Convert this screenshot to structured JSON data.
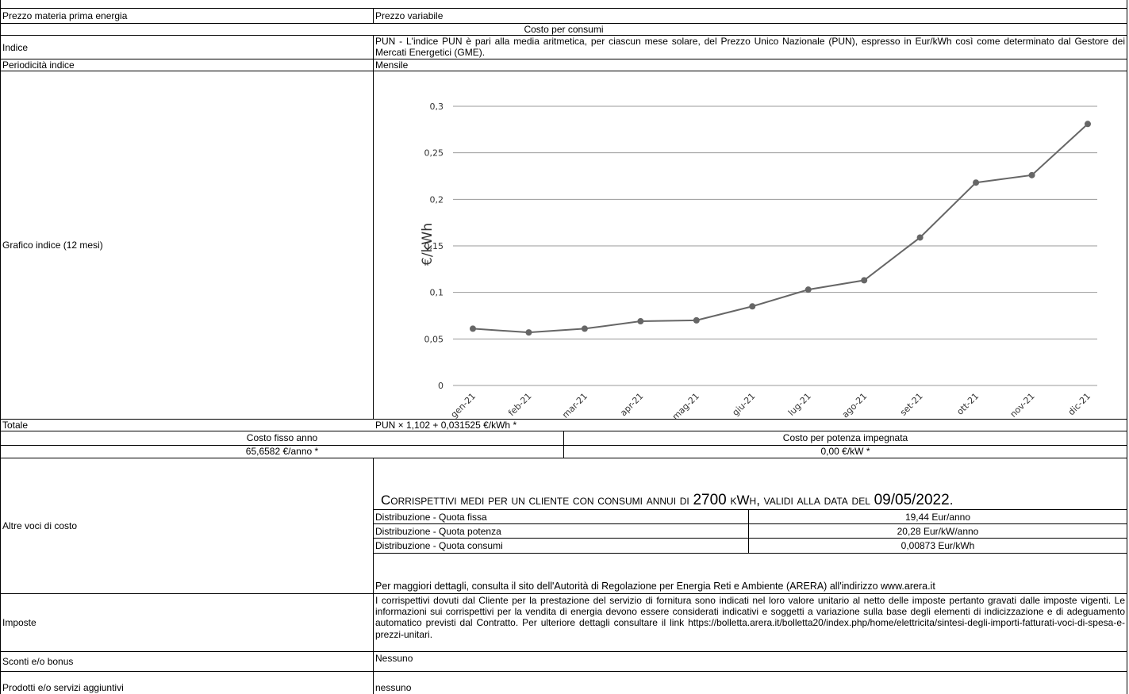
{
  "rows": {
    "prezzo": {
      "label": "Prezzo materia prima energia",
      "value": "Prezzo variabile"
    },
    "costo_consumi_header": "Costo per consumi",
    "indice": {
      "label": "Indice",
      "value": "PUN - L'indice PUN è pari alla media aritmetica, per ciascun mese solare, del Prezzo Unico Nazionale (PUN), espresso in Eur/kWh così come determinato dal Gestore dei Mercati Energetici (GME)."
    },
    "periodicita": {
      "label": "Periodicità indice",
      "value": "Mensile"
    },
    "grafico": {
      "label": "Grafico indice (12 mesi)"
    },
    "totale": {
      "label": "Totale",
      "value": "PUN × 1,102 + 0,031525 €/kWh *"
    },
    "costo_fisso": {
      "label": "Costo fisso anno",
      "value": "65,6582 €/anno *"
    },
    "costo_potenza": {
      "label": "Costo per potenza impegnata",
      "value": "0,00 €/kW *"
    },
    "altre_voci": {
      "label": "Altre voci di costo",
      "heading_pre": "Corrispettivi medi per un cliente con consumi annui di ",
      "heading_kwh": "2700",
      "heading_mid": " kWh, validi alla data del ",
      "heading_date": "09/05/2022",
      "heading_end": ".",
      "items": [
        {
          "name": "Distribuzione - Quota fissa",
          "value": "19,44 Eur/anno"
        },
        {
          "name": "Distribuzione - Quota potenza",
          "value": "20,28 Eur/kW/anno"
        },
        {
          "name": "Distribuzione - Quota consumi",
          "value": "0,00873 Eur/kWh"
        }
      ],
      "note": "Per maggiori dettagli, consulta il sito dell'Autorità di Regolazione per Energia Reti e Ambiente (ARERA) all'indirizzo www.arera.it"
    },
    "imposte": {
      "label": "Imposte",
      "value": "I corrispettivi dovuti dal Cliente per la prestazione del servizio di fornitura sono indicati nel loro valore unitario al netto delle imposte pertanto gravati dalle imposte vigenti. Le informazioni sui corrispettivi per la vendita di energia devono essere considerati indicativi e soggetti a variazione sulla base degli elementi di indicizzazione e di adeguamento automatico previsti dal Contratto. Per ulteriore dettagli consultare il link https://bolletta.arera.it/bolletta20/index.php/home/elettricita/sintesi-degli-importi-fatturati-voci-di-spesa-e-prezzi-unitari."
    },
    "sconti": {
      "label": "Sconti e/o bonus",
      "value": "Nessuno"
    },
    "prodotti": {
      "label": "Prodotti e/o servizi aggiuntivi",
      "value": "nessuno"
    }
  },
  "chart_data": {
    "type": "line",
    "categories": [
      "gen-21",
      "feb-21",
      "mar-21",
      "apr-21",
      "mag-21",
      "giu-21",
      "lug-21",
      "ago-21",
      "set-21",
      "ott-21",
      "nov-21",
      "dic-21"
    ],
    "values": [
      0.061,
      0.057,
      0.061,
      0.069,
      0.07,
      0.085,
      0.103,
      0.113,
      0.159,
      0.218,
      0.226,
      0.281
    ],
    "ylabel": "€/kWh",
    "ylim": [
      0,
      0.3
    ],
    "yticks": [
      0,
      0.05,
      0.1,
      0.15,
      0.2,
      0.25,
      0.3
    ],
    "ytick_labels": [
      "0",
      "0,05",
      "0,1",
      "0,15",
      "0,2",
      "0,25",
      "0,3"
    ],
    "grid": true,
    "line_color": "#666666",
    "grid_color": "#999999"
  }
}
